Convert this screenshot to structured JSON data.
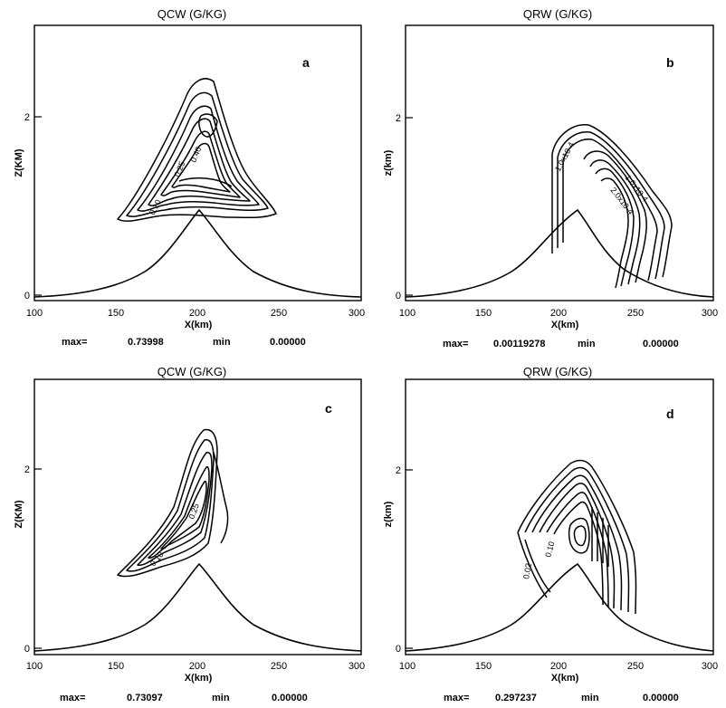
{
  "chart_data": [
    {
      "type": "contour",
      "panel_letter": "a",
      "title": "QCW (G/KG)",
      "xlabel": "X(km)",
      "ylabel": "Z(KM)",
      "xlim": [
        100,
        300
      ],
      "ylim": [
        0,
        2.9
      ],
      "x_ticks": [
        "100",
        "150",
        "200",
        "250",
        "300"
      ],
      "y_ticks": [
        "0",
        "2"
      ],
      "contour_labels": [
        "0.10",
        "0.25",
        "0.40"
      ],
      "max_label": "max=",
      "max_value": "0.73998",
      "min_label": "min",
      "min_value": "0.00000",
      "field": {
        "peak_x": 212,
        "peak_z": 1.6,
        "base_x": 150,
        "base_z": 0.85,
        "top_z": 2.5
      }
    },
    {
      "type": "contour",
      "panel_letter": "b",
      "title": "QRW (G/KG)",
      "xlabel": "X(km)",
      "ylabel": "z(km)",
      "xlim": [
        100,
        300
      ],
      "ylim": [
        0,
        2.9
      ],
      "x_ticks": [
        "100",
        "150",
        "200",
        "250",
        "300"
      ],
      "y_ticks": [
        "0",
        "2"
      ],
      "contour_labels": [
        "1.0x10-4",
        "1.0x10-4",
        "2.0x10-4"
      ],
      "max_label": "max=",
      "max_value": "0.00119278",
      "min_label": "min",
      "min_value": "0.00000"
    },
    {
      "type": "contour",
      "panel_letter": "c",
      "title": "QCW (G/KG)",
      "xlabel": "X(km)",
      "ylabel": "Z(KM)",
      "xlim": [
        100,
        300
      ],
      "ylim": [
        0,
        2.9
      ],
      "x_ticks": [
        "100",
        "150",
        "200",
        "250",
        "300"
      ],
      "y_ticks": [
        "0",
        "2"
      ],
      "contour_labels": [
        "0.10",
        "0.25"
      ],
      "max_label": "max=",
      "max_value": "0.73097",
      "min_label": "min",
      "min_value": "0.00000"
    },
    {
      "type": "contour",
      "panel_letter": "d",
      "title": "QRW (G/KG)",
      "xlabel": "X(km)",
      "ylabel": "z(km)",
      "xlim": [
        100,
        300
      ],
      "ylim": [
        0,
        2.9
      ],
      "x_ticks": [
        "100",
        "150",
        "200",
        "250",
        "300"
      ],
      "y_ticks": [
        "0",
        "2"
      ],
      "contour_labels": [
        "0.02",
        "0.10"
      ],
      "max_label": "max=",
      "max_value": "0.297237",
      "min_label": "min",
      "min_value": "0.00000"
    }
  ]
}
